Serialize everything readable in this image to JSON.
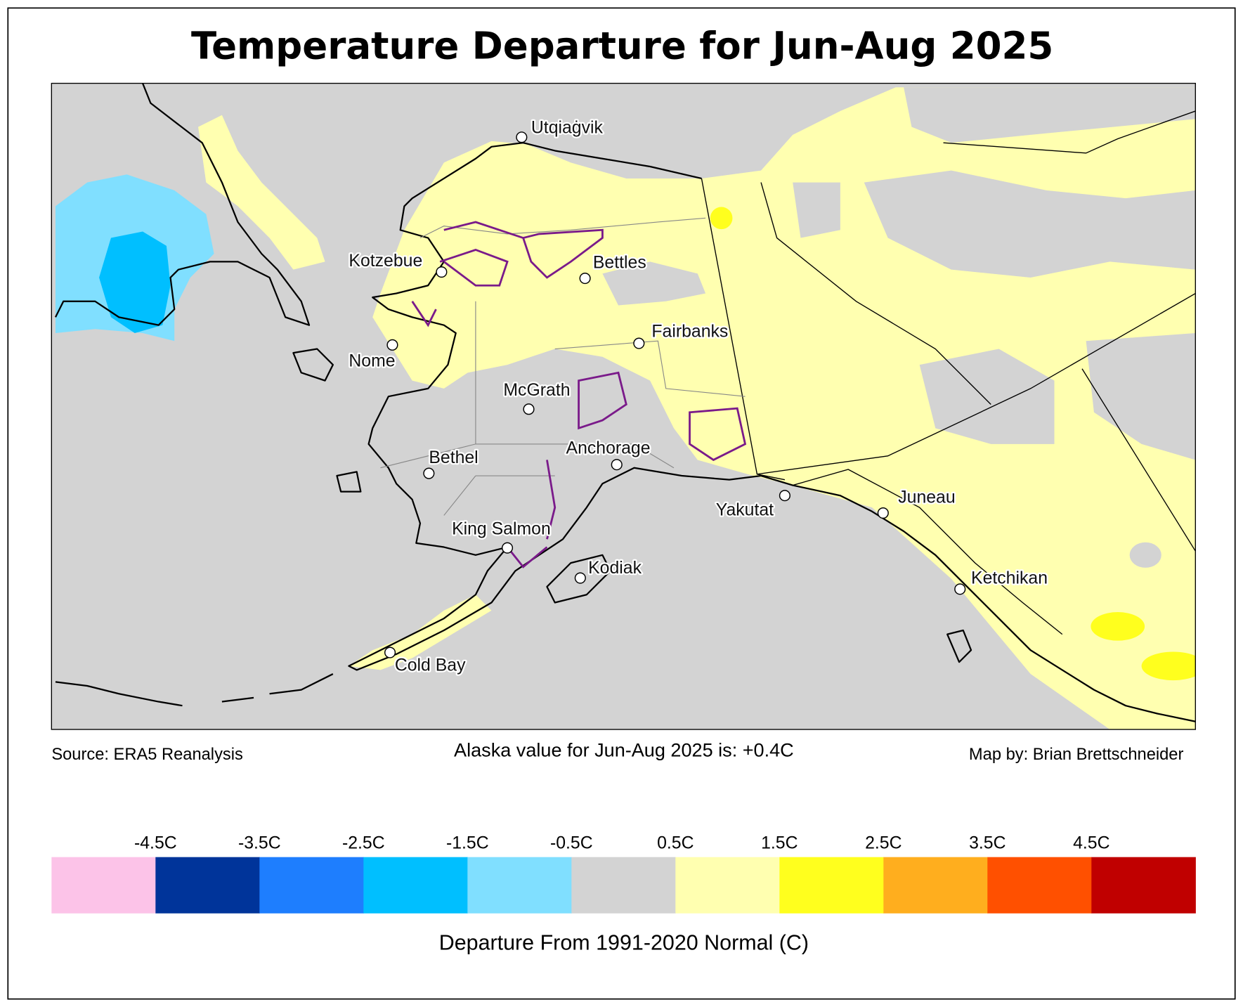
{
  "title": "Temperature Departure for Jun-Aug 2025",
  "footer": {
    "source": "Source: ERA5 Reanalysis",
    "statewide": "Alaska value for Jun-Aug 2025 is: +0.4C",
    "credit": "Map by: Brian Brettschneider"
  },
  "cities": [
    "Utqiaġvik",
    "Kotzebue",
    "Bettles",
    "Fairbanks",
    "Nome",
    "McGrath",
    "Anchorage",
    "Bethel",
    "Yakutat",
    "Juneau",
    "King Salmon",
    "Kodiak",
    "Ketchikan",
    "Cold Bay"
  ],
  "legend": {
    "title": "Departure From 1991-2020 Normal (C)",
    "range": [
      -5.5,
      5.5
    ],
    "colors": [
      "#fcc3e8",
      "#00349a",
      "#1e7efe",
      "#00bfff",
      "#80dfff",
      "#d3d3d3",
      "#ffffb0",
      "#ffff1e",
      "#ffae1e",
      "#ff5000",
      "#c00000"
    ],
    "ticks": [
      {
        "value": -4.5,
        "label": "-4.5C"
      },
      {
        "value": -3.5,
        "label": "-3.5C"
      },
      {
        "value": -2.5,
        "label": "-2.5C"
      },
      {
        "value": -1.5,
        "label": "-1.5C"
      },
      {
        "value": -0.5,
        "label": "-0.5C"
      },
      {
        "value": 0.5,
        "label": "0.5C"
      },
      {
        "value": 1.5,
        "label": "1.5C"
      },
      {
        "value": 2.5,
        "label": "2.5C"
      },
      {
        "value": 3.5,
        "label": "3.5C"
      },
      {
        "value": 4.5,
        "label": "4.5C"
      }
    ]
  }
}
